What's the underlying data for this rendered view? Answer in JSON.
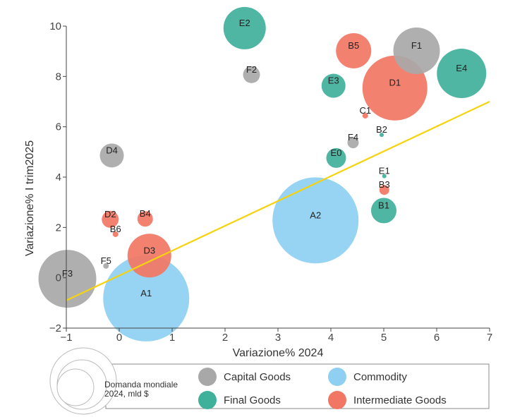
{
  "chart_data": {
    "type": "scatter",
    "variant": "bubble",
    "xlabel": "Variazione% 2024",
    "ylabel": "Variazione% I trim2025",
    "xlim": [
      -1,
      7
    ],
    "ylim": [
      -2,
      10
    ],
    "x_ticks": [
      "−1",
      "0",
      "1",
      "2",
      "3",
      "4",
      "5",
      "6",
      "7"
    ],
    "y_ticks": [
      "−2",
      "0",
      "2",
      "4",
      "6",
      "8",
      "10"
    ],
    "grid": false,
    "categories": [
      {
        "name": "Capital Goods",
        "color": "#a9a8a9"
      },
      {
        "name": "Commodity",
        "color": "#8ecff2"
      },
      {
        "name": "Final Goods",
        "color": "#3fb09a"
      },
      {
        "name": "Intermediate Goods",
        "color": "#f27664"
      }
    ],
    "size_legend_label": "Domanda mondiale\n2024, mld $",
    "trend_line": {
      "color": "#f5d40f",
      "x": [
        -1,
        7
      ],
      "y": [
        -0.9,
        7.0
      ]
    },
    "points": [
      {
        "label": "E2",
        "category": "Final Goods",
        "x": 2.37,
        "y": 9.92,
        "size": 30
      },
      {
        "label": "F2",
        "category": "Capital Goods",
        "x": 2.5,
        "y": 8.07,
        "size": 12
      },
      {
        "label": "B5",
        "category": "Intermediate Goods",
        "x": 4.43,
        "y": 9.02,
        "size": 25
      },
      {
        "label": "F1",
        "category": "Capital Goods",
        "x": 5.62,
        "y": 9.02,
        "size": 33
      },
      {
        "label": "E4",
        "category": "Final Goods",
        "x": 6.47,
        "y": 8.12,
        "size": 35
      },
      {
        "label": "E3",
        "category": "Final Goods",
        "x": 4.05,
        "y": 7.63,
        "size": 17
      },
      {
        "label": "D1",
        "category": "Intermediate Goods",
        "x": 5.21,
        "y": 7.54,
        "size": 46
      },
      {
        "label": "C1",
        "category": "Intermediate Goods",
        "x": 4.65,
        "y": 6.44,
        "size": 4
      },
      {
        "label": "B2",
        "category": "Final Goods",
        "x": 4.96,
        "y": 5.68,
        "size": 3
      },
      {
        "label": "F4",
        "category": "Capital Goods",
        "x": 4.42,
        "y": 5.37,
        "size": 8
      },
      {
        "label": "E0",
        "category": "Final Goods",
        "x": 4.1,
        "y": 4.76,
        "size": 14
      },
      {
        "label": "E1",
        "category": "Final Goods",
        "x": 5.01,
        "y": 4.04,
        "size": 3
      },
      {
        "label": "B3",
        "category": "Intermediate Goods",
        "x": 5.01,
        "y": 3.49,
        "size": 7
      },
      {
        "label": "B1",
        "category": "Final Goods",
        "x": 5.0,
        "y": 2.67,
        "size": 18
      },
      {
        "label": "A2",
        "category": "Commodity",
        "x": 3.71,
        "y": 2.28,
        "size": 61
      },
      {
        "label": "D4",
        "category": "Capital Goods",
        "x": -0.14,
        "y": 4.86,
        "size": 17
      },
      {
        "label": "D2",
        "category": "Intermediate Goods",
        "x": -0.17,
        "y": 2.32,
        "size": 12
      },
      {
        "label": "B4",
        "category": "Intermediate Goods",
        "x": 0.49,
        "y": 2.34,
        "size": 11
      },
      {
        "label": "B6",
        "category": "Intermediate Goods",
        "x": -0.07,
        "y": 1.73,
        "size": 4
      },
      {
        "label": "D3",
        "category": "Intermediate Goods",
        "x": 0.57,
        "y": 0.88,
        "size": 31
      },
      {
        "label": "F5",
        "category": "Capital Goods",
        "x": -0.25,
        "y": 0.47,
        "size": 4
      },
      {
        "label": "F3",
        "category": "Capital Goods",
        "x": -0.98,
        "y": -0.04,
        "size": 41
      },
      {
        "label": "A1",
        "category": "Commodity",
        "x": 0.51,
        "y": -0.82,
        "size": 61
      }
    ]
  }
}
